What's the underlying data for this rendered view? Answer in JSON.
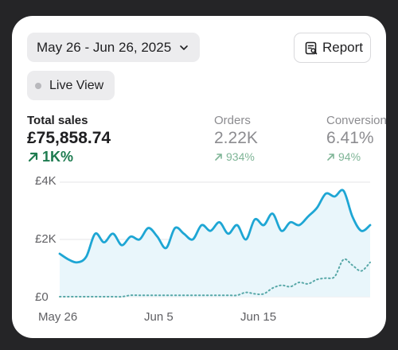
{
  "header": {
    "date_range": "May 26 - Jun 26, 2025",
    "report_label": "Report",
    "live_view_label": "Live View"
  },
  "metrics": [
    {
      "label": "Total sales",
      "value": "£75,858.74",
      "change": "1K%"
    },
    {
      "label": "Orders",
      "value": "2.22K",
      "change": "934%"
    },
    {
      "label": "Conversion",
      "value": "6.41%",
      "change": "94%"
    }
  ],
  "chart_data": {
    "type": "line",
    "y_tick_labels": [
      "£4K",
      "£2K",
      "£0"
    ],
    "x_tick_labels": [
      "May 26",
      "Jun 5",
      "Jun 15"
    ],
    "ylim": [
      0,
      4000
    ],
    "series": [
      {
        "style": "solid",
        "color": "#1ea6d4",
        "values": [
          1500,
          1300,
          1200,
          1400,
          2200,
          1900,
          2200,
          1800,
          2100,
          2000,
          2400,
          2100,
          1700,
          2400,
          2200,
          2000,
          2500,
          2300,
          2600,
          2200,
          2500,
          2000,
          2700,
          2500,
          2900,
          2300,
          2600,
          2500,
          2800,
          3100,
          3600,
          3500,
          3700,
          2800,
          2300,
          2500
        ]
      },
      {
        "style": "dotted",
        "color": "#58a8a8",
        "values": [
          0,
          0,
          0,
          0,
          0,
          0,
          0,
          0,
          50,
          50,
          50,
          50,
          50,
          50,
          50,
          50,
          50,
          50,
          50,
          50,
          50,
          150,
          100,
          100,
          300,
          400,
          350,
          500,
          450,
          600,
          650,
          700,
          1300,
          1100,
          900,
          1200
        ]
      }
    ]
  }
}
